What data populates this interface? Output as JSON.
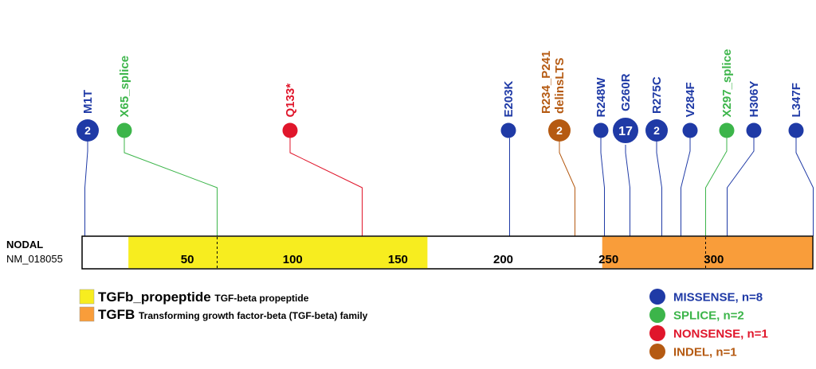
{
  "gene": {
    "name": "NODAL",
    "transcript": "NM_018055"
  },
  "protein": {
    "length": 347
  },
  "domains": [
    {
      "id": "TGFb_propeptide",
      "name": "TGFb_propeptide",
      "description": "TGF-beta propeptide",
      "start": 22,
      "end": 164,
      "color": "#f7ed1f"
    },
    {
      "id": "TGFB",
      "name": "TGFB",
      "description": "Transforming growth factor-beta (TGF-beta) family",
      "start": 247,
      "end": 347,
      "color": "#f99d3a"
    }
  ],
  "ticks": [
    50,
    100,
    150,
    200,
    250,
    300
  ],
  "exon_boundaries": [
    64,
    296
  ],
  "mutation_types": [
    {
      "id": "missense",
      "label": "MISSENSE, n=8",
      "color": "#1f3aa6"
    },
    {
      "id": "splice",
      "label": "SPLICE, n=2",
      "color": "#3cb54a"
    },
    {
      "id": "nonsense",
      "label": "NONSENSE, n=1",
      "color": "#e0162b"
    },
    {
      "id": "indel",
      "label": "INDEL, n=1",
      "color": "#b55a12"
    }
  ],
  "mutations": [
    {
      "label": "M1T",
      "position": 1,
      "count": 2,
      "type": "missense"
    },
    {
      "label": "X65_splice",
      "position": 64,
      "count": 1,
      "type": "splice"
    },
    {
      "label": "Q133*",
      "position": 133,
      "count": 1,
      "type": "nonsense"
    },
    {
      "label": "E203K",
      "position": 203,
      "count": 1,
      "type": "missense"
    },
    {
      "label": "R234_P241 delinsLTS",
      "lines": [
        "R234_P241",
        "delinsLTS"
      ],
      "position": 234,
      "count": 2,
      "type": "indel"
    },
    {
      "label": "R248W",
      "position": 248,
      "count": 1,
      "type": "missense"
    },
    {
      "label": "G260R",
      "position": 260,
      "count": 17,
      "type": "missense"
    },
    {
      "label": "R275C",
      "position": 275,
      "count": 2,
      "type": "missense"
    },
    {
      "label": "V284F",
      "position": 284,
      "count": 1,
      "type": "missense"
    },
    {
      "label": "X297_splice",
      "position": 296,
      "count": 1,
      "type": "splice"
    },
    {
      "label": "H306Y",
      "position": 306,
      "count": 1,
      "type": "missense"
    },
    {
      "label": "L347F",
      "position": 347,
      "count": 1,
      "type": "missense"
    }
  ]
}
